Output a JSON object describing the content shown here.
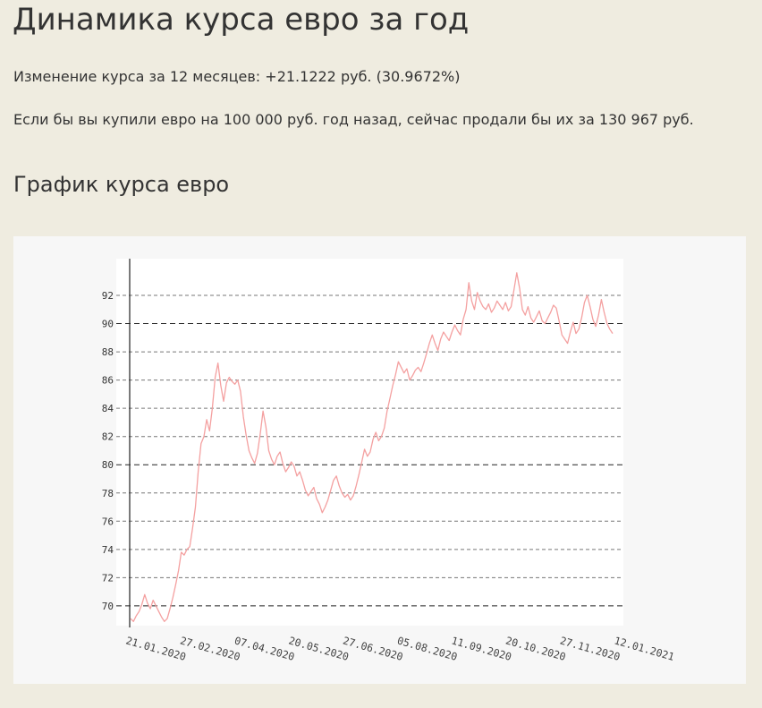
{
  "header": {
    "title": "Динамика курса евро за год",
    "change_text": "Изменение курса за 12 месяцев: +21.1222 руб. (30.9672%)",
    "purchase_text": "Если бы вы купили евро на 100 000  руб. год назад, сейчас продали бы их за 130 967 руб."
  },
  "section": {
    "chart_heading": "График курса евро"
  },
  "colors": {
    "page_background": "#efece0",
    "panel_background": "#f7f7f7",
    "plot_background": "#ffffff",
    "line": "#f4a0a0",
    "grid_major": "#222222",
    "grid_minor": "#777777"
  },
  "chart_data": {
    "type": "line",
    "title": "",
    "xlabel": "",
    "ylabel": "",
    "ylim": [
      68.6,
      94.6
    ],
    "grid": true,
    "legend": "none",
    "y_ticks": [
      "70",
      "72",
      "74",
      "76",
      "78",
      "80",
      "82",
      "84",
      "86",
      "88",
      "90",
      "92"
    ],
    "dashed_major_lines": [
      70,
      80,
      90
    ],
    "x_tick_labels": [
      "21.01.2020",
      "27.02.2020",
      "07.04.2020",
      "20.05.2020",
      "27.06.2020",
      "05.08.2020",
      "11.09.2020",
      "20.10.2020",
      "27.11.2020",
      "12.01.2021"
    ],
    "series": [
      {
        "values": [
          69.1,
          68.9,
          69.3,
          69.6,
          70.1,
          70.8,
          70.2,
          69.8,
          70.4,
          70.0,
          69.6,
          69.2,
          68.9,
          69.1,
          69.8,
          70.6,
          71.5,
          72.5,
          73.8,
          73.6,
          74.0,
          74.2,
          75.5,
          77.0,
          79.5,
          81.5,
          82.0,
          83.2,
          82.4,
          84.0,
          86.2,
          87.2,
          85.6,
          84.5,
          85.8,
          86.2,
          85.9,
          85.7,
          86.0,
          85.2,
          83.4,
          82.1,
          81.0,
          80.5,
          80.1,
          80.8,
          82.2,
          83.8,
          82.7,
          81.0,
          80.4,
          80.0,
          80.6,
          80.9,
          80.1,
          79.5,
          79.8,
          80.2,
          79.9,
          79.2,
          79.5,
          78.9,
          78.2,
          77.8,
          78.1,
          78.4,
          77.6,
          77.2,
          76.6,
          77.0,
          77.5,
          78.2,
          78.9,
          79.2,
          78.5,
          78.0,
          77.7,
          77.9,
          77.5,
          77.8,
          78.5,
          79.3,
          80.2,
          81.1,
          80.6,
          80.9,
          81.8,
          82.3,
          81.7,
          82.0,
          82.6,
          83.8,
          84.7,
          85.6,
          86.4,
          87.3,
          86.9,
          86.5,
          86.8,
          86.0,
          86.3,
          86.7,
          86.9,
          86.6,
          87.2,
          87.9,
          88.6,
          89.2,
          88.6,
          88.1,
          88.9,
          89.4,
          89.1,
          88.8,
          89.4,
          89.9,
          89.5,
          89.2,
          90.3,
          91.0,
          92.9,
          91.6,
          91.0,
          92.2,
          91.6,
          91.2,
          91.0,
          91.4,
          90.8,
          91.1,
          91.6,
          91.3,
          91.0,
          91.5,
          90.9,
          91.2,
          92.4,
          93.6,
          92.5,
          91.0,
          90.6,
          91.2,
          90.4,
          90.1,
          90.5,
          90.9,
          90.2,
          90.0,
          90.4,
          90.8,
          91.3,
          91.1,
          90.2,
          89.2,
          88.9,
          88.6,
          89.4,
          90.1,
          89.3,
          89.6,
          90.4,
          91.5,
          92.0,
          91.2,
          90.3,
          89.8,
          90.6,
          91.7,
          90.8,
          90.0,
          89.6,
          89.3
        ]
      }
    ]
  }
}
